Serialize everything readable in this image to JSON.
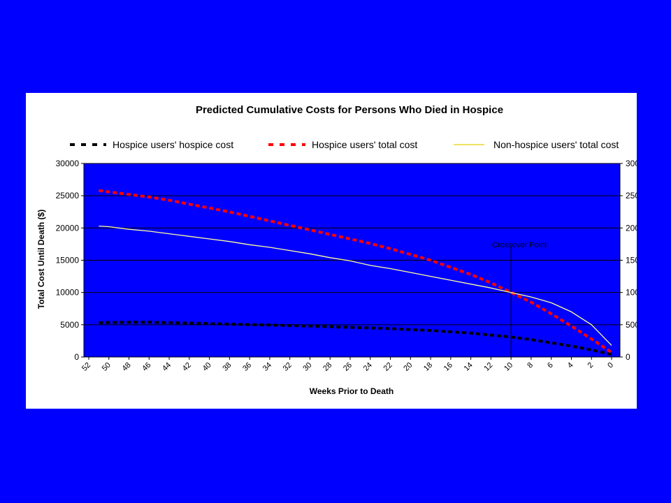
{
  "colors": {
    "slide_bg": "#0000FF",
    "plot_bg": "#0000FF",
    "panel_bg": "#FFFFFF",
    "hospice_cost": "#000000",
    "hospice_total": "#FF0000",
    "nonhospice_total": "#FFFF99"
  },
  "chart_data": {
    "type": "line",
    "title": "Predicted Cumulative Costs for Persons Who Died in Hospice",
    "xlabel": "Weeks Prior to Death",
    "ylabel": "Total Cost Until Death ($)",
    "x_reversed": true,
    "xlim": [
      52,
      0
    ],
    "ylim": [
      0,
      30000
    ],
    "y_ticks": [
      0,
      5000,
      10000,
      15000,
      20000,
      25000,
      30000
    ],
    "x_ticks": [
      52,
      50,
      48,
      46,
      44,
      42,
      40,
      38,
      36,
      34,
      32,
      30,
      28,
      26,
      24,
      22,
      20,
      18,
      16,
      14,
      12,
      10,
      8,
      6,
      4,
      2,
      0
    ],
    "grid": "horizontal",
    "secondary_y_axis": true,
    "legend_position": "top",
    "annotation": {
      "text": "Crossover Point",
      "x": 10
    },
    "series": [
      {
        "name": "Hospice users' hospice cost",
        "style": "dashed",
        "color": "#000000",
        "x": [
          51,
          50,
          48,
          46,
          44,
          42,
          40,
          38,
          36,
          34,
          32,
          30,
          28,
          26,
          24,
          22,
          20,
          18,
          16,
          14,
          12,
          10,
          8,
          6,
          4,
          2,
          0
        ],
        "values": [
          5300,
          5350,
          5380,
          5380,
          5330,
          5250,
          5180,
          5100,
          5020,
          4950,
          4870,
          4790,
          4700,
          4600,
          4500,
          4400,
          4250,
          4100,
          3900,
          3700,
          3400,
          3100,
          2700,
          2200,
          1700,
          1100,
          400
        ]
      },
      {
        "name": "Hospice users' total cost",
        "style": "dashed",
        "color": "#FF0000",
        "x": [
          51,
          50,
          48,
          46,
          44,
          42,
          40,
          38,
          36,
          34,
          32,
          30,
          28,
          26,
          24,
          22,
          20,
          18,
          16,
          14,
          12,
          10,
          8,
          6,
          4,
          2,
          0
        ],
        "values": [
          25800,
          25600,
          25200,
          24800,
          24300,
          23700,
          23100,
          22500,
          21800,
          21100,
          20400,
          19700,
          19000,
          18300,
          17600,
          16800,
          15900,
          15000,
          13900,
          12800,
          11500,
          10000,
          8500,
          6700,
          4800,
          2800,
          700
        ]
      },
      {
        "name": "Non-hospice users' total cost",
        "style": "solid",
        "color": "#FFFF99",
        "x": [
          51,
          50,
          48,
          46,
          44,
          42,
          40,
          38,
          36,
          34,
          32,
          30,
          28,
          26,
          24,
          22,
          20,
          18,
          16,
          14,
          12,
          10,
          8,
          6,
          4,
          2,
          0
        ],
        "values": [
          20300,
          20200,
          19800,
          19500,
          19100,
          18700,
          18300,
          17900,
          17400,
          17000,
          16500,
          16000,
          15400,
          14900,
          14200,
          13700,
          13100,
          12500,
          11900,
          11300,
          10700,
          10000,
          9300,
          8400,
          7000,
          5000,
          1800
        ]
      }
    ]
  }
}
